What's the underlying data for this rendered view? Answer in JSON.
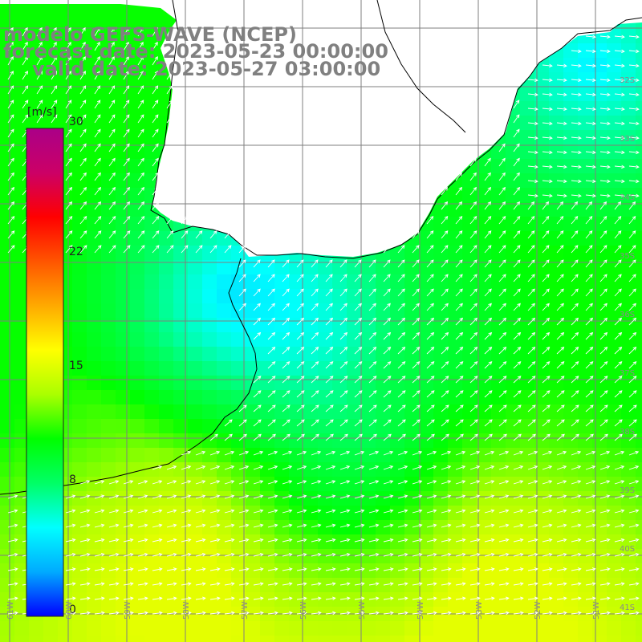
{
  "title": {
    "line1": "modelo GEFS-WAVE (NCEP)",
    "line2": "forecast date: 2023-05-23 00:00:00",
    "line3": "valid date: 2023-05-27 03:00:00"
  },
  "colorbar": {
    "unit": "[m/s]",
    "min": 0,
    "max": 30,
    "tick_labels": [
      "0",
      "8",
      "15",
      "22",
      "30"
    ],
    "tick_values": [
      0,
      8,
      15,
      22,
      30
    ],
    "colors": [
      "#0000ff",
      "#00aaff",
      "#00ffff",
      "#00ff66",
      "#00ff00",
      "#aaff00",
      "#ffff00",
      "#ffaa00",
      "#ff5500",
      "#ff0000",
      "#cc0066",
      "#aa0088"
    ]
  },
  "map": {
    "lat_labels": [
      "32S",
      "33S",
      "34S",
      "35S",
      "36S",
      "37S",
      "38S",
      "39S",
      "40S",
      "41S"
    ],
    "lon_labels": [
      "61W",
      "60W",
      "59W",
      "58W",
      "57W",
      "56W",
      "55W",
      "54W",
      "53W",
      "52W",
      "51W"
    ],
    "land_color": "#ffffff",
    "grid_color": "#7f7f7f",
    "coast_color": "#000000"
  }
}
